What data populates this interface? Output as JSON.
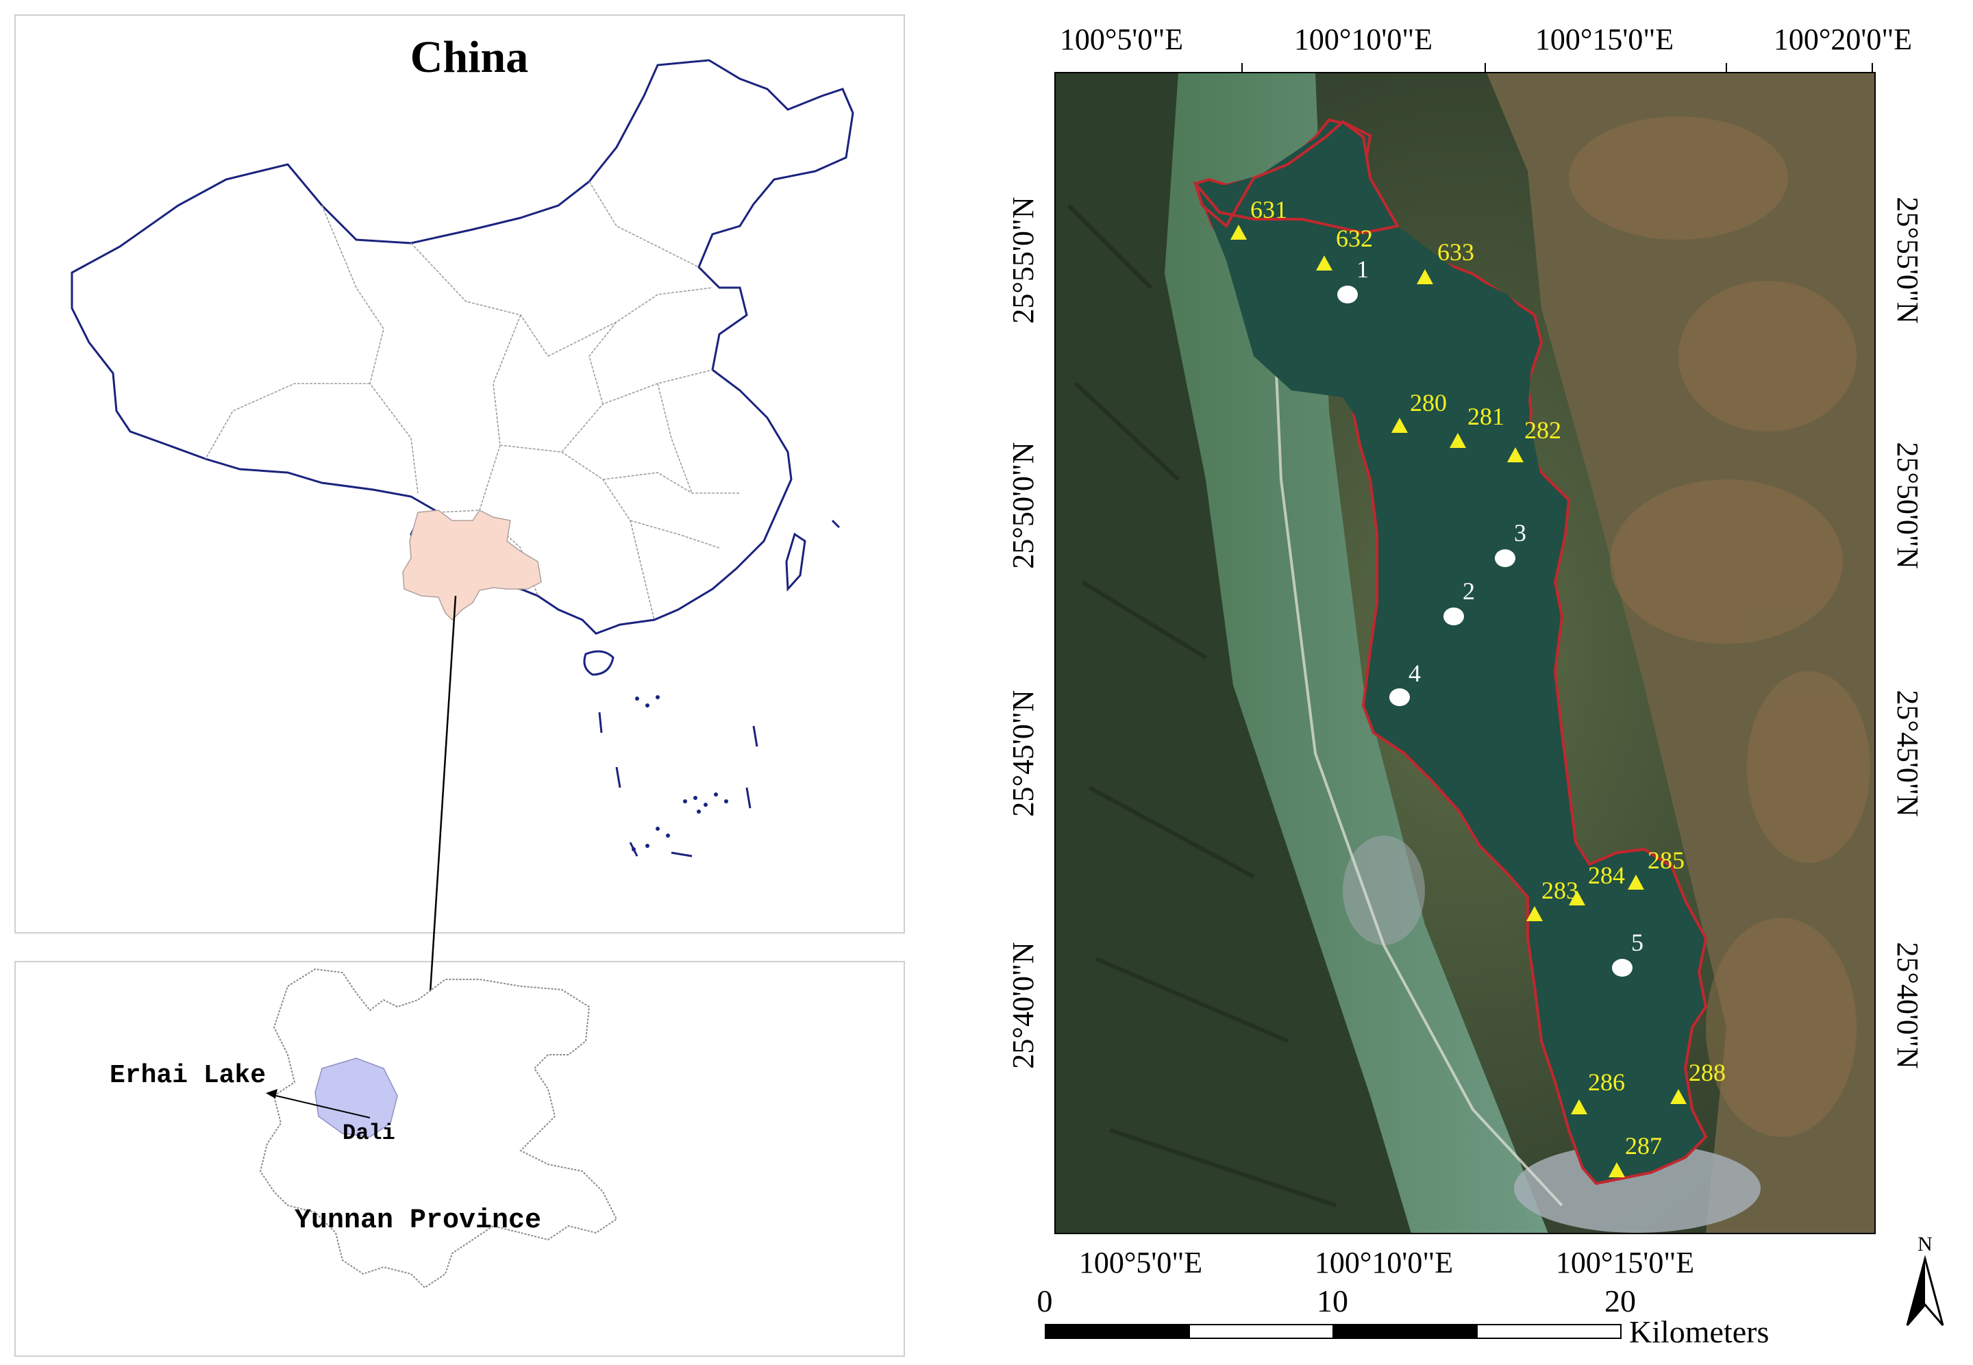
{
  "left_panel": {
    "title": "China",
    "yunnan_label": "Yunnan Province",
    "erhai_label": "Erhai Lake",
    "dali_label": "Dali",
    "colors": {
      "border": "#1a237e",
      "province_lines": "#9e9e9e",
      "yunnan_fill": "#f8d9cb",
      "dali_fill": "#c5c8f2"
    }
  },
  "right_panel": {
    "top_lon_labels": [
      "100°5'0\"E",
      "100°10'0\"E",
      "100°15'0\"E",
      "100°20'0\"E"
    ],
    "bottom_lon_labels": [
      "100°5'0\"E",
      "100°10'0\"E",
      "100°15'0\"E"
    ],
    "lat_labels": [
      "25°55'0\"N",
      "25°50'0\"N",
      "25°45'0\"N",
      "25°40'0\"N"
    ],
    "lake_points": [
      {
        "label": "1"
      },
      {
        "label": "2"
      },
      {
        "label": "3"
      },
      {
        "label": "4"
      },
      {
        "label": "5"
      }
    ],
    "station_triangles": [
      {
        "label": "631"
      },
      {
        "label": "632"
      },
      {
        "label": "633"
      },
      {
        "label": "280"
      },
      {
        "label": "281"
      },
      {
        "label": "282"
      },
      {
        "label": "283"
      },
      {
        "label": "284"
      },
      {
        "label": "285"
      },
      {
        "label": "286"
      },
      {
        "label": "287"
      },
      {
        "label": "288"
      }
    ],
    "scale_bar": {
      "ticks": [
        "0",
        "10",
        "20"
      ],
      "unit": "Kilometers"
    },
    "north_arrow_label": "N",
    "colors": {
      "lake": "#1f4f45",
      "shore": "#c0282d",
      "triangle": "#f7f021",
      "station_text": "#f7f021",
      "point": "#ffffff"
    }
  }
}
